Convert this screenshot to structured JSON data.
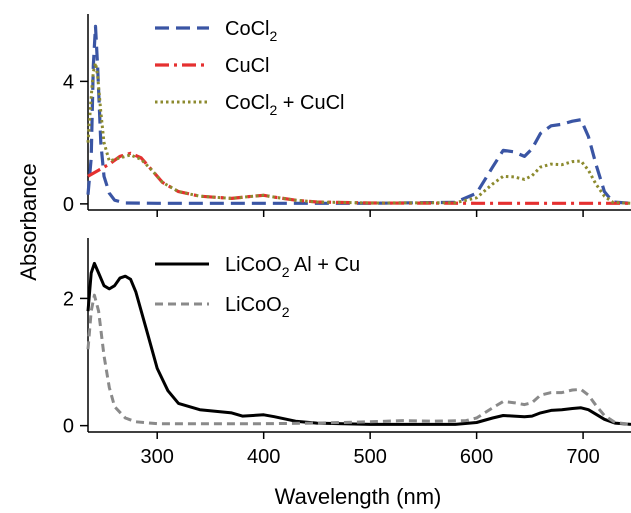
{
  "chart_data": {
    "type": "line",
    "xlabel": "Wavelength (nm)",
    "ylabel": "Absorbance",
    "shared_x": {
      "ticks": [
        300,
        400,
        500,
        600,
        700
      ],
      "tick_labels": [
        "300",
        "400",
        "500",
        "600",
        "700"
      ],
      "xlim": [
        235,
        745
      ]
    },
    "panels": [
      {
        "name": "top",
        "ylim": [
          -0.2,
          6.2
        ],
        "yticks": [
          0,
          4
        ],
        "ytick_labels": [
          "0",
          "4"
        ],
        "series": [
          {
            "name": "CoCl2",
            "legend_main": "CoCl",
            "legend_sub": "2",
            "legend_rest": "",
            "color": "#3a55a4",
            "dash": "14,7",
            "width": 3.2,
            "points": [
              [
                235,
                0.3
              ],
              [
                238,
                1.5
              ],
              [
                240,
                4.5
              ],
              [
                242,
                5.8
              ],
              [
                244,
                4.5
              ],
              [
                247,
                2.0
              ],
              [
                250,
                0.9
              ],
              [
                255,
                0.35
              ],
              [
                260,
                0.12
              ],
              [
                270,
                0.03
              ],
              [
                300,
                0.02
              ],
              [
                400,
                0.02
              ],
              [
                500,
                0.02
              ],
              [
                580,
                0.05
              ],
              [
                600,
                0.35
              ],
              [
                615,
                1.2
              ],
              [
                625,
                1.75
              ],
              [
                635,
                1.7
              ],
              [
                645,
                1.55
              ],
              [
                652,
                1.8
              ],
              [
                660,
                2.3
              ],
              [
                670,
                2.55
              ],
              [
                680,
                2.6
              ],
              [
                690,
                2.7
              ],
              [
                698,
                2.75
              ],
              [
                705,
                2.2
              ],
              [
                712,
                1.3
              ],
              [
                720,
                0.4
              ],
              [
                728,
                0.06
              ],
              [
                745,
                0.02
              ]
            ]
          },
          {
            "name": "CuCl",
            "legend_main": "CuCl",
            "legend_sub": "",
            "legend_rest": "",
            "color": "#e53030",
            "dash": "14,5,3,5",
            "width": 3.2,
            "points": [
              [
                235,
                0.9
              ],
              [
                245,
                1.1
              ],
              [
                255,
                1.3
              ],
              [
                265,
                1.55
              ],
              [
                275,
                1.65
              ],
              [
                285,
                1.5
              ],
              [
                295,
                1.1
              ],
              [
                305,
                0.7
              ],
              [
                320,
                0.4
              ],
              [
                340,
                0.25
              ],
              [
                370,
                0.18
              ],
              [
                390,
                0.25
              ],
              [
                400,
                0.28
              ],
              [
                410,
                0.22
              ],
              [
                430,
                0.12
              ],
              [
                450,
                0.06
              ],
              [
                500,
                0.03
              ],
              [
                600,
                0.02
              ],
              [
                700,
                0.02
              ],
              [
                745,
                0.02
              ]
            ]
          },
          {
            "name": "CoCl2 + CuCl",
            "legend_main": "CoCl",
            "legend_sub": "2",
            "legend_rest": " + CuCl",
            "color": "#8c8a2e",
            "dash": "2.5,3",
            "width": 3,
            "points": [
              [
                235,
                2.0
              ],
              [
                238,
                3.5
              ],
              [
                240,
                4.3
              ],
              [
                242,
                4.6
              ],
              [
                244,
                4.2
              ],
              [
                247,
                3.0
              ],
              [
                250,
                2.0
              ],
              [
                255,
                1.4
              ],
              [
                265,
                1.5
              ],
              [
                275,
                1.6
              ],
              [
                285,
                1.45
              ],
              [
                295,
                1.1
              ],
              [
                305,
                0.7
              ],
              [
                320,
                0.4
              ],
              [
                340,
                0.25
              ],
              [
                370,
                0.18
              ],
              [
                390,
                0.25
              ],
              [
                400,
                0.28
              ],
              [
                410,
                0.22
              ],
              [
                430,
                0.12
              ],
              [
                450,
                0.06
              ],
              [
                500,
                0.03
              ],
              [
                580,
                0.04
              ],
              [
                600,
                0.2
              ],
              [
                615,
                0.65
              ],
              [
                625,
                0.9
              ],
              [
                635,
                0.88
              ],
              [
                645,
                0.8
              ],
              [
                652,
                0.92
              ],
              [
                660,
                1.2
              ],
              [
                670,
                1.3
              ],
              [
                680,
                1.28
              ],
              [
                690,
                1.38
              ],
              [
                698,
                1.4
              ],
              [
                705,
                1.1
              ],
              [
                712,
                0.65
              ],
              [
                720,
                0.25
              ],
              [
                728,
                0.05
              ],
              [
                745,
                0.02
              ]
            ]
          }
        ]
      },
      {
        "name": "bottom",
        "ylim": [
          -0.1,
          2.95
        ],
        "yticks": [
          0,
          2
        ],
        "ytick_labels": [
          "0",
          "2"
        ],
        "series": [
          {
            "name": "LiCoO2 Al + Cu",
            "legend_main": "LiCoO",
            "legend_sub": "2",
            "legend_rest": " Al + Cu",
            "color": "#000000",
            "dash": "",
            "width": 3,
            "points": [
              [
                235,
                1.8
              ],
              [
                238,
                2.4
              ],
              [
                241,
                2.55
              ],
              [
                245,
                2.4
              ],
              [
                250,
                2.2
              ],
              [
                255,
                2.15
              ],
              [
                260,
                2.2
              ],
              [
                265,
                2.32
              ],
              [
                270,
                2.35
              ],
              [
                275,
                2.3
              ],
              [
                280,
                2.1
              ],
              [
                290,
                1.5
              ],
              [
                300,
                0.9
              ],
              [
                310,
                0.55
              ],
              [
                320,
                0.35
              ],
              [
                340,
                0.25
              ],
              [
                370,
                0.2
              ],
              [
                380,
                0.15
              ],
              [
                400,
                0.17
              ],
              [
                410,
                0.14
              ],
              [
                430,
                0.07
              ],
              [
                450,
                0.04
              ],
              [
                500,
                0.02
              ],
              [
                580,
                0.02
              ],
              [
                600,
                0.05
              ],
              [
                615,
                0.12
              ],
              [
                625,
                0.16
              ],
              [
                635,
                0.15
              ],
              [
                645,
                0.14
              ],
              [
                652,
                0.15
              ],
              [
                660,
                0.2
              ],
              [
                670,
                0.24
              ],
              [
                680,
                0.25
              ],
              [
                690,
                0.27
              ],
              [
                698,
                0.28
              ],
              [
                705,
                0.25
              ],
              [
                712,
                0.18
              ],
              [
                720,
                0.1
              ],
              [
                730,
                0.04
              ],
              [
                745,
                0.02
              ]
            ]
          },
          {
            "name": "LiCoO2",
            "legend_main": "LiCoO",
            "legend_sub": "2",
            "legend_rest": "",
            "color": "#8a8a8a",
            "dash": "8,5",
            "width": 3,
            "points": [
              [
                235,
                1.2
              ],
              [
                238,
                1.8
              ],
              [
                241,
                2.05
              ],
              [
                245,
                1.8
              ],
              [
                250,
                1.1
              ],
              [
                255,
                0.6
              ],
              [
                260,
                0.3
              ],
              [
                270,
                0.12
              ],
              [
                280,
                0.06
              ],
              [
                300,
                0.03
              ],
              [
                400,
                0.03
              ],
              [
                450,
                0.04
              ],
              [
                500,
                0.06
              ],
              [
                530,
                0.08
              ],
              [
                560,
                0.07
              ],
              [
                590,
                0.08
              ],
              [
                600,
                0.12
              ],
              [
                615,
                0.28
              ],
              [
                625,
                0.38
              ],
              [
                635,
                0.36
              ],
              [
                645,
                0.33
              ],
              [
                652,
                0.36
              ],
              [
                660,
                0.48
              ],
              [
                670,
                0.52
              ],
              [
                680,
                0.52
              ],
              [
                690,
                0.56
              ],
              [
                698,
                0.57
              ],
              [
                705,
                0.48
              ],
              [
                712,
                0.32
              ],
              [
                720,
                0.16
              ],
              [
                730,
                0.05
              ],
              [
                745,
                0.02
              ]
            ]
          }
        ]
      }
    ]
  }
}
